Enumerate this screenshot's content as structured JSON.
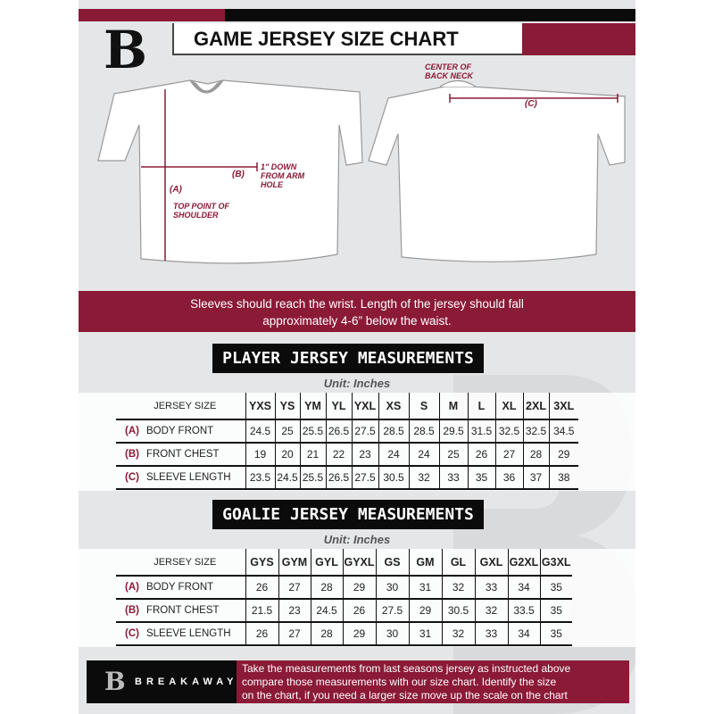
{
  "header": {
    "title": "GAME JERSEY SIZE CHART",
    "logo_letter": "B"
  },
  "diagram": {
    "labels": {
      "a": "(A)",
      "a_desc": "TOP POINT OF SHOULDER",
      "b": "(B)",
      "b_desc": "1\" DOWN FROM ARM HOLE",
      "c": "(C)",
      "c_desc": "CENTER OF BACK NECK"
    }
  },
  "banner": {
    "line1": "Sleeves should reach the wrist. Length of the jersey should fall",
    "line2": "approximately 4-6” below the waist."
  },
  "player": {
    "heading": "PLAYER JERSEY MEASUREMENTS",
    "unit": "Unit: Inches",
    "size_label": "JERSEY SIZE",
    "sizes": [
      "YXS",
      "YS",
      "YM",
      "YL",
      "YXL",
      "XS",
      "S",
      "M",
      "L",
      "XL",
      "2XL",
      "3XL"
    ],
    "rows": [
      {
        "code": "(A)",
        "name": "BODY FRONT",
        "values": [
          "24.5",
          "25",
          "25.5",
          "26.5",
          "27.5",
          "28.5",
          "28.5",
          "29.5",
          "31.5",
          "32.5",
          "32.5",
          "34.5"
        ]
      },
      {
        "code": "(B)",
        "name": "FRONT CHEST",
        "values": [
          "19",
          "20",
          "21",
          "22",
          "23",
          "24",
          "24",
          "25",
          "26",
          "27",
          "28",
          "29"
        ]
      },
      {
        "code": "(C)",
        "name": "SLEEVE LENGTH",
        "values": [
          "23.5",
          "24.5",
          "25.5",
          "26.5",
          "27.5",
          "30.5",
          "32",
          "33",
          "35",
          "36",
          "37",
          "38"
        ]
      }
    ]
  },
  "goalie": {
    "heading": "GOALIE JERSEY MEASUREMENTS",
    "unit": "Unit: Inches",
    "size_label": "JERSEY SIZE",
    "sizes": [
      "GYS",
      "GYM",
      "GYL",
      "GYXL",
      "GS",
      "GM",
      "GL",
      "GXL",
      "G2XL",
      "G3XL"
    ],
    "rows": [
      {
        "code": "(A)",
        "name": "BODY FRONT",
        "values": [
          "26",
          "27",
          "28",
          "29",
          "30",
          "31",
          "32",
          "33",
          "34",
          "35"
        ]
      },
      {
        "code": "(B)",
        "name": "FRONT CHEST",
        "values": [
          "21.5",
          "23",
          "24.5",
          "26",
          "27.5",
          "29",
          "30.5",
          "32",
          "33.5",
          "35"
        ]
      },
      {
        "code": "(C)",
        "name": "SLEEVE LENGTH",
        "values": [
          "26",
          "27",
          "28",
          "29",
          "30",
          "31",
          "32",
          "33",
          "34",
          "35"
        ]
      }
    ]
  },
  "footer": {
    "brand": "BREAKAWAY",
    "line1": "Take the measurements from last seasons jersey as instructed above",
    "line2": "compare those measurements  with our size chart. Identify the size",
    "line3": "on the chart, if you need a larger size move up the scale on the chart"
  },
  "colors": {
    "maroon": "#8b1a36",
    "black": "#0b0b0b",
    "background": "#e5e6e8"
  }
}
